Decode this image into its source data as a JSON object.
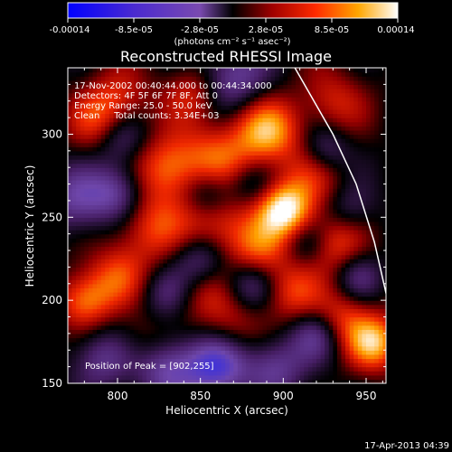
{
  "colorbar": {
    "tick_labels": [
      "-0.00014",
      "-8.5e-05",
      "-2.8e-05",
      "2.8e-05",
      "8.5e-05",
      "0.00014"
    ],
    "unit_label": "(photons cm⁻² s⁻¹ asec⁻²)"
  },
  "chart_data": {
    "type": "heatmap",
    "title": "Reconstructed RHESSI Image",
    "xlabel": "Heliocentric X (arcsec)",
    "ylabel": "Heliocentric Y (arcsec)",
    "xlim": [
      770,
      962
    ],
    "ylim": [
      150,
      340
    ],
    "x_ticks": [
      800,
      850,
      900,
      950
    ],
    "y_ticks": [
      150,
      200,
      250,
      300
    ],
    "color_range": [
      -0.00014,
      0.00014
    ],
    "peak": {
      "x": 902,
      "y": 255
    },
    "limb_curve": [
      [
        907,
        340
      ],
      [
        930,
        300
      ],
      [
        944,
        270
      ],
      [
        955,
        235
      ],
      [
        963,
        200
      ],
      [
        970,
        170
      ],
      [
        975,
        150
      ]
    ],
    "blobs": [
      {
        "x": 901,
        "y": 255,
        "v": 1.0,
        "s": 12
      },
      {
        "x": 890,
        "y": 302,
        "v": 0.75,
        "s": 14
      },
      {
        "x": 860,
        "y": 285,
        "v": 0.55,
        "s": 16
      },
      {
        "x": 830,
        "y": 280,
        "v": 0.6,
        "s": 14
      },
      {
        "x": 790,
        "y": 305,
        "v": 0.55,
        "s": 13
      },
      {
        "x": 820,
        "y": 245,
        "v": 0.5,
        "s": 16
      },
      {
        "x": 860,
        "y": 245,
        "v": 0.55,
        "s": 15
      },
      {
        "x": 885,
        "y": 230,
        "v": 0.5,
        "s": 13
      },
      {
        "x": 920,
        "y": 280,
        "v": 0.45,
        "s": 14
      },
      {
        "x": 930,
        "y": 235,
        "v": 0.55,
        "s": 13
      },
      {
        "x": 780,
        "y": 200,
        "v": 0.65,
        "s": 12
      },
      {
        "x": 800,
        "y": 215,
        "v": 0.45,
        "s": 13
      },
      {
        "x": 850,
        "y": 205,
        "v": 0.35,
        "s": 14
      },
      {
        "x": 905,
        "y": 205,
        "v": 0.5,
        "s": 13
      },
      {
        "x": 955,
        "y": 175,
        "v": 0.8,
        "s": 12
      },
      {
        "x": 935,
        "y": 190,
        "v": 0.45,
        "s": 12
      },
      {
        "x": 870,
        "y": 185,
        "v": 0.3,
        "s": 13
      },
      {
        "x": 815,
        "y": 175,
        "v": 0.25,
        "s": 12
      },
      {
        "x": 800,
        "y": 320,
        "v": 0.45,
        "s": 14
      },
      {
        "x": 845,
        "y": 325,
        "v": 0.4,
        "s": 12
      },
      {
        "x": 930,
        "y": 320,
        "v": 0.4,
        "s": 14
      },
      {
        "x": 800,
        "y": 300,
        "v": -0.6,
        "s": 12
      },
      {
        "x": 775,
        "y": 260,
        "v": -0.5,
        "s": 14
      },
      {
        "x": 800,
        "y": 265,
        "v": -0.55,
        "s": 12
      },
      {
        "x": 855,
        "y": 265,
        "v": -0.5,
        "s": 11
      },
      {
        "x": 850,
        "y": 225,
        "v": -0.55,
        "s": 12
      },
      {
        "x": 830,
        "y": 160,
        "v": -0.6,
        "s": 14
      },
      {
        "x": 860,
        "y": 160,
        "v": -0.75,
        "s": 13
      },
      {
        "x": 895,
        "y": 160,
        "v": -0.5,
        "s": 13
      },
      {
        "x": 790,
        "y": 165,
        "v": -0.45,
        "s": 13
      },
      {
        "x": 880,
        "y": 210,
        "v": -0.45,
        "s": 11
      },
      {
        "x": 915,
        "y": 235,
        "v": -0.35,
        "s": 10
      },
      {
        "x": 925,
        "y": 290,
        "v": -0.55,
        "s": 11
      },
      {
        "x": 940,
        "y": 255,
        "v": -0.3,
        "s": 11
      },
      {
        "x": 870,
        "y": 335,
        "v": -0.55,
        "s": 14
      },
      {
        "x": 920,
        "y": 180,
        "v": -0.45,
        "s": 11
      },
      {
        "x": 945,
        "y": 215,
        "v": -0.35,
        "s": 10
      },
      {
        "x": 830,
        "y": 205,
        "v": -0.35,
        "s": 11
      },
      {
        "x": 880,
        "y": 270,
        "v": -0.3,
        "s": 10
      }
    ],
    "annotations": {
      "line1": "17-Nov-2002 00:40:44.000 to 00:44:34.000",
      "line2": "Detectors: 4F 5F 6F 7F 8F, Att 0",
      "line3": "Energy Range: 25.0 - 50.0 keV",
      "line4": "Clean     Total counts: 3.34E+03",
      "peak_text": "Position of Peak = [902,255]"
    }
  },
  "timestamp": "17-Apr-2013 04:39"
}
